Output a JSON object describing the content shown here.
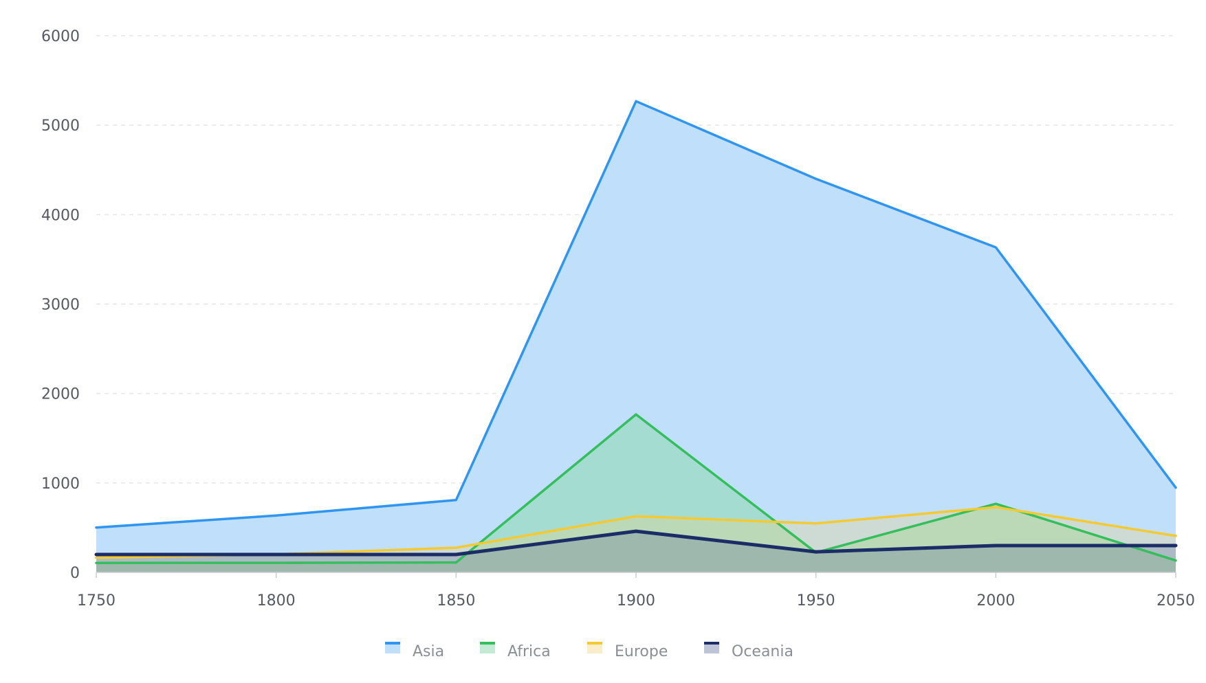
{
  "chart_data": {
    "type": "area",
    "title": "",
    "xlabel": "",
    "ylabel": "",
    "x": [
      1750,
      1800,
      1850,
      1900,
      1950,
      2000,
      2050
    ],
    "xlim": [
      1750,
      2050
    ],
    "ylim": [
      0,
      6000
    ],
    "yticks": [
      0,
      1000,
      2000,
      3000,
      4000,
      5000,
      6000
    ],
    "grid": "horizontal dashed",
    "legend_position": "bottom",
    "series": [
      {
        "name": "Asia",
        "color": "#2f95f0",
        "fill": "#bfdffb",
        "fill_opacity": 1.0,
        "stroke_width": 3.5,
        "values": [
          502,
          635,
          809,
          5268,
          4400,
          3634,
          947
        ]
      },
      {
        "name": "Africa",
        "color": "#35be5c",
        "fill": "#8fd9b0",
        "fill_opacity": 0.55,
        "stroke_width": 3.5,
        "values": [
          106,
          107,
          111,
          1766,
          221,
          767,
          133
        ]
      },
      {
        "name": "Europe",
        "color": "#f5c932",
        "fill": "#f2d37a",
        "fill_opacity": 0.3,
        "stroke_width": 3.5,
        "values": [
          163,
          203,
          276,
          628,
          547,
          729,
          408
        ]
      },
      {
        "name": "Oceania",
        "color": "#1b2c66",
        "fill": "#5b6c9a",
        "fill_opacity": 0.3,
        "stroke_width": 5,
        "values": [
          200,
          200,
          200,
          460,
          230,
          300,
          300
        ]
      }
    ]
  }
}
